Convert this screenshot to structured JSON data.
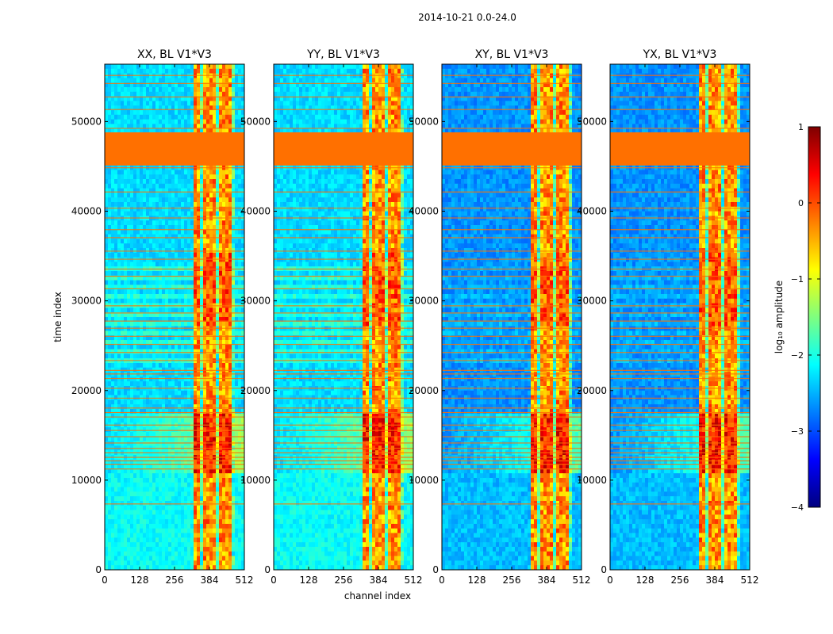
{
  "figure_title": "2014-10-21 0.0-24.0",
  "colors": {
    "flag": "#ff7000",
    "background_low": "#0a35ff",
    "noise_high": "#3fbfff"
  },
  "colormap": {
    "name": "jet",
    "stops": [
      "#00007f",
      "#0000ff",
      "#007fff",
      "#00ffff",
      "#7fff7f",
      "#ffff00",
      "#ff7f00",
      "#ff0000",
      "#7f0000"
    ]
  },
  "chart_data": {
    "type": "heatmap",
    "xlabel": "channel index",
    "ylabel": "time index",
    "xlim": [
      0,
      512
    ],
    "ylim": [
      0,
      56400
    ],
    "x_ticks": [
      0,
      128,
      256,
      384,
      512
    ],
    "x_tick_labels": [
      "0",
      "128",
      "256",
      "384",
      "512"
    ],
    "y_ticks": [
      0,
      10000,
      20000,
      30000,
      40000,
      50000
    ],
    "y_tick_labels": [
      "0",
      "10000",
      "20000",
      "30000",
      "40000",
      "50000"
    ],
    "panels": [
      {
        "title": "XX, BL V1*V3",
        "pol": "XX"
      },
      {
        "title": "YY, BL V1*V3",
        "pol": "YY"
      },
      {
        "title": "XY, BL V1*V3",
        "pol": "XY"
      },
      {
        "title": "YX, BL V1*V3",
        "pol": "YX"
      }
    ],
    "flagged_time_range": [
      45100,
      48800
    ],
    "rfi_band_channels": [
      325,
      480
    ],
    "colorbar": {
      "label": "log₁₀ amplitude",
      "range": [
        -4,
        1
      ],
      "ticks": [
        -4,
        -3,
        -2,
        -1,
        0,
        1
      ],
      "tick_labels": [
        "−4",
        "−3",
        "−2",
        "−1",
        "0",
        "1"
      ]
    }
  }
}
